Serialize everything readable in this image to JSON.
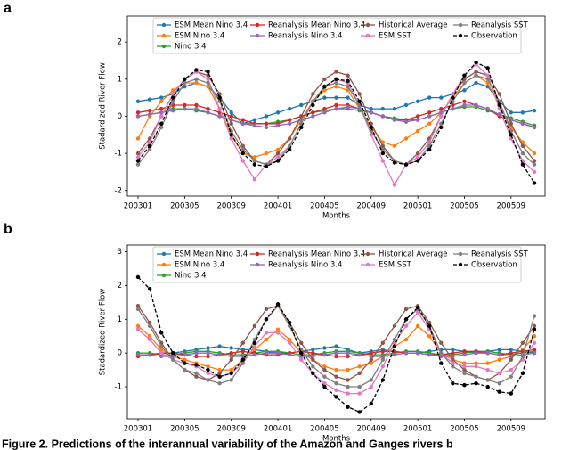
{
  "chart_data": [
    {
      "type": "line",
      "label": "a",
      "xlabel": "Months",
      "ylabel": "Stadardized River Flow",
      "categories": [
        "200301",
        null,
        null,
        null,
        "200305",
        null,
        null,
        null,
        "200309",
        null,
        null,
        null,
        "200401",
        null,
        null,
        null,
        "200405",
        null,
        null,
        null,
        "200409",
        null,
        null,
        null,
        "200501",
        null,
        null,
        null,
        "200505",
        null,
        null,
        null,
        "200509",
        null,
        null
      ],
      "ylim": [
        -2.15,
        2.7
      ],
      "yticks": [
        -2,
        -1,
        0,
        1,
        2
      ],
      "series": [
        {
          "name": "ESM Mean Nino 3.4",
          "color": "#1f77b4",
          "values": [
            0.4,
            0.45,
            0.5,
            0.6,
            0.8,
            0.9,
            0.8,
            0.5,
            0.1,
            -0.2,
            -0.1,
            0.0,
            0.1,
            0.2,
            0.3,
            0.4,
            0.5,
            0.5,
            0.5,
            0.3,
            0.2,
            0.2,
            0.2,
            0.3,
            0.4,
            0.5,
            0.5,
            0.6,
            0.7,
            0.9,
            0.8,
            0.4,
            0.1,
            0.1,
            0.15
          ]
        },
        {
          "name": "ESM Nino 3.4",
          "color": "#ff7f0e",
          "values": [
            -0.6,
            0.0,
            0.4,
            0.7,
            0.9,
            0.9,
            0.8,
            0.2,
            -0.5,
            -1.0,
            -1.1,
            -1.0,
            -0.9,
            -0.6,
            -0.1,
            0.4,
            0.7,
            0.8,
            0.7,
            0.2,
            -0.3,
            -0.7,
            -0.8,
            -0.6,
            -0.4,
            -0.2,
            0.1,
            0.5,
            0.9,
            1.1,
            0.9,
            0.3,
            -0.3,
            -0.7,
            -1.0
          ]
        },
        {
          "name": "Nino 3.4",
          "color": "#2ca02c",
          "values": [
            0.0,
            0.05,
            0.1,
            0.2,
            0.2,
            0.15,
            0.1,
            0.0,
            -0.1,
            -0.2,
            -0.2,
            -0.2,
            -0.15,
            -0.1,
            0.0,
            0.1,
            0.15,
            0.2,
            0.2,
            0.15,
            0.1,
            0.0,
            -0.05,
            -0.1,
            -0.1,
            0.0,
            0.1,
            0.2,
            0.25,
            0.25,
            0.15,
            0.05,
            -0.05,
            -0.15,
            -0.25
          ]
        },
        {
          "name": "Reanalysis Mean Nino 3.4",
          "color": "#d62728",
          "values": [
            0.1,
            0.15,
            0.2,
            0.3,
            0.3,
            0.3,
            0.2,
            0.1,
            0.0,
            -0.1,
            -0.2,
            -0.2,
            -0.2,
            -0.1,
            0.0,
            0.1,
            0.2,
            0.3,
            0.3,
            0.2,
            0.1,
            0.0,
            -0.1,
            -0.1,
            0.0,
            0.1,
            0.2,
            0.3,
            0.4,
            0.3,
            0.2,
            0.0,
            -0.1,
            -0.2,
            -0.3
          ]
        },
        {
          "name": "Reanalysis Nino 3.4",
          "color": "#9467bd",
          "values": [
            0.0,
            0.05,
            0.1,
            0.15,
            0.2,
            0.2,
            0.1,
            0.0,
            -0.1,
            -0.2,
            -0.25,
            -0.3,
            -0.25,
            -0.2,
            -0.1,
            0.0,
            0.1,
            0.2,
            0.25,
            0.2,
            0.1,
            0.0,
            -0.1,
            -0.15,
            -0.1,
            0.0,
            0.1,
            0.2,
            0.3,
            0.3,
            0.2,
            0.05,
            -0.1,
            -0.2,
            -0.3
          ]
        },
        {
          "name": "Historical Average",
          "color": "#8c564b",
          "values": [
            -1.0,
            -0.6,
            0.0,
            0.6,
            1.0,
            1.2,
            1.1,
            0.6,
            -0.2,
            -0.8,
            -1.2,
            -1.3,
            -1.0,
            -0.6,
            0.0,
            0.6,
            1.0,
            1.2,
            1.1,
            0.6,
            -0.2,
            -0.8,
            -1.2,
            -1.3,
            -1.0,
            -0.6,
            0.0,
            0.6,
            1.0,
            1.2,
            1.1,
            0.6,
            -0.2,
            -0.8,
            -1.2
          ]
        },
        {
          "name": "ESM SST",
          "color": "#e377c2",
          "values": [
            -1.1,
            -0.7,
            0.0,
            0.6,
            1.0,
            1.2,
            1.0,
            0.2,
            -0.6,
            -1.2,
            -1.7,
            -1.3,
            -1.1,
            -0.8,
            -0.2,
            0.4,
            0.8,
            1.0,
            0.9,
            0.3,
            -0.5,
            -1.2,
            -1.85,
            -1.3,
            -1.1,
            -0.7,
            0.0,
            0.6,
            1.1,
            1.4,
            1.1,
            0.2,
            -0.6,
            -1.2,
            -1.5
          ]
        },
        {
          "name": "Reanalysis SST",
          "color": "#7f7f7f",
          "values": [
            -1.3,
            -0.9,
            -0.3,
            0.4,
            0.9,
            1.0,
            0.9,
            0.4,
            -0.4,
            -0.9,
            -1.2,
            -1.3,
            -1.2,
            -0.8,
            -0.2,
            0.4,
            0.8,
            0.9,
            0.8,
            0.3,
            -0.4,
            -0.9,
            -1.2,
            -1.3,
            -1.2,
            -0.8,
            -0.2,
            0.4,
            0.9,
            1.1,
            1.0,
            0.4,
            -0.4,
            -1.0,
            -1.3
          ]
        },
        {
          "name": "Observation",
          "color": "#000000",
          "linestyle": "dashed",
          "values": [
            -1.2,
            -0.8,
            -0.2,
            0.5,
            1.0,
            1.25,
            1.2,
            0.5,
            -0.5,
            -1.0,
            -1.3,
            -1.35,
            -1.2,
            -0.9,
            -0.3,
            0.3,
            0.8,
            1.0,
            0.95,
            0.4,
            -0.3,
            -1.0,
            -1.25,
            -1.3,
            -1.2,
            -0.9,
            -0.3,
            0.5,
            1.1,
            1.45,
            1.3,
            0.3,
            -0.5,
            -1.3,
            -1.8
          ]
        }
      ]
    },
    {
      "type": "line",
      "label": "b",
      "xlabel": "Months",
      "ylabel": "Stadardized River Flow",
      "categories": [
        "200301",
        null,
        null,
        null,
        "200305",
        null,
        null,
        null,
        "200309",
        null,
        null,
        null,
        "200401",
        null,
        null,
        null,
        "200405",
        null,
        null,
        null,
        "200409",
        null,
        null,
        null,
        "200501",
        null,
        null,
        null,
        "200505",
        null,
        null,
        null,
        "200509",
        null,
        null
      ],
      "ylim": [
        -1.95,
        3.2
      ],
      "yticks": [
        -1,
        0,
        1,
        2,
        3
      ],
      "series": [
        {
          "name": "ESM Mean Nino 3.4",
          "color": "#1f77b4",
          "values": [
            -0.05,
            -0.05,
            0.0,
            0.0,
            0.05,
            0.1,
            0.15,
            0.2,
            0.15,
            0.1,
            0.1,
            0.05,
            0.0,
            0.0,
            0.05,
            0.1,
            0.15,
            0.2,
            0.1,
            0.0,
            0.05,
            0.1,
            0.05,
            0.0,
            0.0,
            0.05,
            0.1,
            0.1,
            0.05,
            0.0,
            0.05,
            0.1,
            0.1,
            0.05,
            0.0
          ]
        },
        {
          "name": "ESM Nino 3.4",
          "color": "#ff7f0e",
          "values": [
            0.8,
            0.5,
            0.1,
            -0.1,
            -0.2,
            -0.3,
            -0.4,
            -0.5,
            -0.5,
            -0.2,
            0.1,
            0.4,
            0.7,
            0.4,
            0.0,
            -0.2,
            -0.4,
            -0.5,
            -0.5,
            -0.4,
            -0.3,
            -0.1,
            0.2,
            0.4,
            0.8,
            0.5,
            0.0,
            -0.2,
            -0.3,
            -0.3,
            -0.3,
            -0.2,
            -0.1,
            0.1,
            0.5
          ]
        },
        {
          "name": "Nino 3.4",
          "color": "#2ca02c",
          "values": [
            0.0,
            0.0,
            -0.05,
            -0.05,
            0.0,
            0.05,
            0.05,
            0.0,
            -0.05,
            -0.05,
            0.0,
            0.05,
            0.05,
            0.0,
            -0.05,
            -0.05,
            0.0,
            0.05,
            0.05,
            0.0,
            -0.05,
            -0.05,
            0.0,
            0.05,
            0.05,
            0.0,
            -0.05,
            -0.05,
            0.0,
            0.05,
            0.05,
            0.0,
            -0.05,
            0.0,
            0.05
          ]
        },
        {
          "name": "Reanalysis Mean Nino 3.4",
          "color": "#d62728",
          "values": [
            -0.1,
            -0.05,
            0.0,
            0.0,
            -0.05,
            -0.1,
            -0.1,
            -0.05,
            0.0,
            0.05,
            0.0,
            -0.05,
            -0.05,
            0.0,
            0.05,
            0.0,
            -0.05,
            -0.1,
            -0.1,
            -0.05,
            0.0,
            0.05,
            0.05,
            0.0,
            0.0,
            -0.05,
            -0.05,
            0.0,
            0.05,
            0.05,
            0.0,
            -0.05,
            0.0,
            0.05,
            0.1
          ]
        },
        {
          "name": "Reanalysis Nino 3.4",
          "color": "#9467bd",
          "values": [
            -0.05,
            -0.05,
            -0.1,
            -0.1,
            -0.05,
            0.0,
            0.0,
            -0.05,
            -0.1,
            -0.1,
            -0.05,
            0.0,
            0.0,
            -0.05,
            -0.1,
            -0.1,
            -0.05,
            0.0,
            0.0,
            -0.05,
            -0.1,
            -0.1,
            -0.05,
            0.0,
            0.0,
            -0.05,
            -0.1,
            -0.1,
            -0.05,
            0.0,
            0.0,
            -0.05,
            -0.1,
            -0.05,
            0.0
          ]
        },
        {
          "name": "Historical Average",
          "color": "#8c564b",
          "values": [
            1.4,
            0.9,
            0.3,
            -0.2,
            -0.5,
            -0.7,
            -0.8,
            -0.6,
            -0.2,
            0.3,
            0.8,
            1.3,
            1.4,
            0.9,
            0.3,
            -0.2,
            -0.5,
            -0.7,
            -0.8,
            -0.6,
            -0.2,
            0.3,
            0.8,
            1.3,
            1.4,
            0.9,
            0.3,
            -0.2,
            -0.5,
            -0.7,
            -0.8,
            -0.6,
            -0.2,
            0.3,
            0.8
          ]
        },
        {
          "name": "ESM SST",
          "color": "#e377c2",
          "values": [
            0.7,
            0.4,
            0.0,
            -0.2,
            -0.3,
            -0.4,
            -0.6,
            -0.7,
            -0.6,
            -0.3,
            0.2,
            0.6,
            0.6,
            0.3,
            -0.2,
            -0.6,
            -0.9,
            -1.1,
            -1.2,
            -1.2,
            -1.0,
            -0.4,
            0.3,
            0.8,
            1.2,
            0.7,
            0.0,
            -0.3,
            -0.4,
            -0.4,
            -0.5,
            -0.6,
            -0.5,
            -0.2,
            0.3
          ]
        },
        {
          "name": "Reanalysis SST",
          "color": "#7f7f7f",
          "values": [
            1.3,
            0.8,
            0.2,
            -0.2,
            -0.5,
            -0.6,
            -0.8,
            -0.9,
            -0.8,
            -0.3,
            0.4,
            1.0,
            1.4,
            0.8,
            0.1,
            -0.4,
            -0.7,
            -0.9,
            -1.0,
            -1.0,
            -0.8,
            -0.2,
            0.4,
            1.0,
            1.3,
            0.8,
            0.0,
            -0.4,
            -0.6,
            -0.7,
            -0.8,
            -0.9,
            -0.7,
            -0.1,
            1.1
          ]
        },
        {
          "name": "Observation",
          "color": "#000000",
          "linestyle": "dashed",
          "values": [
            2.25,
            1.9,
            0.6,
            0.0,
            -0.3,
            -0.35,
            -0.5,
            -0.7,
            -0.6,
            -0.2,
            0.3,
            1.0,
            1.45,
            0.9,
            0.0,
            -0.6,
            -1.0,
            -1.3,
            -1.6,
            -1.75,
            -1.5,
            -0.8,
            0.2,
            1.0,
            1.35,
            0.8,
            -0.3,
            -0.9,
            -0.95,
            -0.9,
            -1.0,
            -1.15,
            -1.2,
            -0.6,
            0.7
          ]
        }
      ]
    }
  ],
  "caption": "Figure 2. Predictions of the interannual variability of the Amazon and Ganges rivers b"
}
